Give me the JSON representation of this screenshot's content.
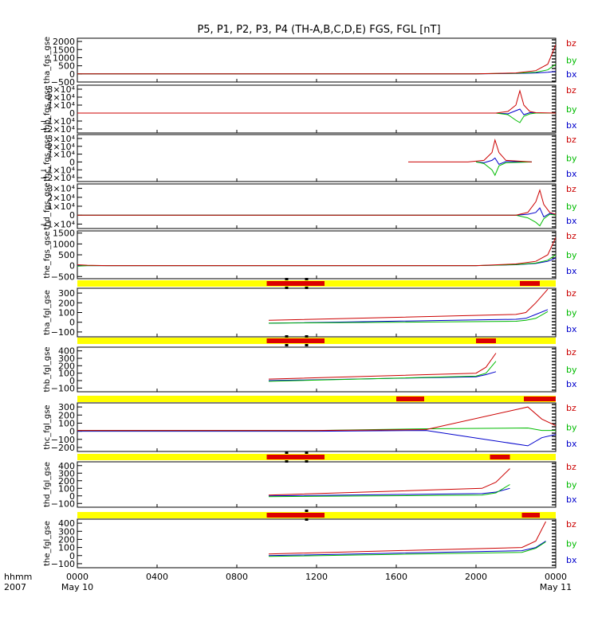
{
  "chart_data": {
    "type": "line",
    "title": "P5, P1, P2, P3, P4 (TH-A,B,C,D,E) FGS, FGL [nT]",
    "x_axis": {
      "label_line1": "hhmm",
      "label_line2": "2007",
      "range_hours": [
        0,
        24
      ],
      "ticks": [
        {
          "hour": 0,
          "label": "0000",
          "sublabel": "May 10"
        },
        {
          "hour": 4,
          "label": "0400",
          "sublabel": ""
        },
        {
          "hour": 8,
          "label": "0800",
          "sublabel": ""
        },
        {
          "hour": 12,
          "label": "1200",
          "sublabel": ""
        },
        {
          "hour": 16,
          "label": "1600",
          "sublabel": ""
        },
        {
          "hour": 20,
          "label": "2000",
          "sublabel": ""
        },
        {
          "hour": 24,
          "label": "0000",
          "sublabel": "May 11"
        }
      ]
    },
    "legend": [
      {
        "name": "bz",
        "color": "#cc0000"
      },
      {
        "name": "by",
        "color": "#00bb00"
      },
      {
        "name": "bx",
        "color": "#0000cc"
      }
    ],
    "status_bar_colors": {
      "normal": "#ffff00",
      "flag": "#dd0000",
      "mark": "#000000"
    },
    "panels": [
      {
        "ylabel": "tha_fgs_gse",
        "ylim": [
          -500,
          2200
        ],
        "ticks": [
          {
            "v": 2000,
            "t": "2000"
          },
          {
            "v": 1500,
            "t": "1500"
          },
          {
            "v": 1000,
            "t": "1000"
          },
          {
            "v": 500,
            "t": "500"
          },
          {
            "v": 0,
            "t": "0"
          },
          {
            "v": -500,
            "t": "−500"
          }
        ],
        "series": [
          {
            "name": "bz",
            "x": [
              0,
              20,
              22,
              23,
              23.6,
              24
            ],
            "y": [
              0,
              0,
              60,
              200,
              600,
              1800
            ]
          },
          {
            "name": "by",
            "x": [
              0,
              20,
              22,
              23,
              23.6,
              24
            ],
            "y": [
              0,
              0,
              40,
              100,
              250,
              600
            ]
          },
          {
            "name": "bx",
            "x": [
              0,
              20,
              22,
              23,
              23.6,
              24
            ],
            "y": [
              0,
              0,
              30,
              60,
              100,
              150
            ]
          }
        ]
      },
      {
        "ylabel": "thb_fgs_gse",
        "ylim": [
          -25000,
          35000
        ],
        "ticks": [
          {
            "v": 30000,
            "t": "3×10⁴"
          },
          {
            "v": 20000,
            "t": "2×10⁴"
          },
          {
            "v": 10000,
            "t": "1×10⁴"
          },
          {
            "v": 0,
            "t": "0"
          },
          {
            "v": -10000,
            "t": "−1×10⁴"
          },
          {
            "v": -20000,
            "t": "−2×10⁴"
          }
        ],
        "series": [
          {
            "name": "bz",
            "x": [
              0,
              21,
              21.6,
              22,
              22.2,
              22.4,
              22.7,
              23,
              24
            ],
            "y": [
              0,
              0,
              2000,
              10000,
              28000,
              10000,
              2000,
              500,
              0
            ]
          },
          {
            "name": "by",
            "x": [
              0,
              21,
              21.6,
              22,
              22.2,
              22.4,
              22.7,
              23,
              24
            ],
            "y": [
              0,
              0,
              -2000,
              -9000,
              -12000,
              -4000,
              -1000,
              0,
              0
            ]
          },
          {
            "name": "bx",
            "x": [
              0,
              21,
              21.6,
              22,
              22.2,
              22.4,
              22.7,
              23,
              24
            ],
            "y": [
              0,
              0,
              -1000,
              3000,
              5000,
              -2000,
              500,
              0,
              0
            ]
          }
        ]
      },
      {
        "ylabel": "thc_fgs_gse",
        "ylim": [
          -25000,
          35000
        ],
        "ticks": [
          {
            "v": 30000,
            "t": "3×10⁴"
          },
          {
            "v": 20000,
            "t": "2×10⁴"
          },
          {
            "v": 10000,
            "t": "1×10⁴"
          },
          {
            "v": 0,
            "t": "0"
          },
          {
            "v": -10000,
            "t": "−1×10⁴"
          },
          {
            "v": -20000,
            "t": "−2×10⁴"
          }
        ],
        "series": [
          {
            "name": "bz",
            "x": [
              16.6,
              19.6,
              20.4,
              20.8,
              20.95,
              21.15,
              21.5,
              22.8
            ],
            "y": [
              0,
              0,
              2000,
              12000,
              28000,
              12000,
              2000,
              0
            ]
          },
          {
            "name": "by",
            "x": [
              20.0,
              20.4,
              20.8,
              20.95,
              21.15,
              21.5,
              22.8
            ],
            "y": [
              0,
              -2000,
              -10000,
              -17000,
              -5000,
              -1000,
              0
            ]
          },
          {
            "name": "bx",
            "x": [
              20.0,
              20.4,
              20.8,
              20.95,
              21.15,
              21.5,
              22.8
            ],
            "y": [
              0,
              -1000,
              2000,
              5000,
              -3000,
              500,
              0
            ]
          }
        ]
      },
      {
        "ylabel": "thd_fgs_gse",
        "ylim": [
          -15000,
          35000
        ],
        "ticks": [
          {
            "v": 30000,
            "t": "3×10⁴"
          },
          {
            "v": 20000,
            "t": "2×10⁴"
          },
          {
            "v": 10000,
            "t": "1×10⁴"
          },
          {
            "v": 0,
            "t": "0"
          },
          {
            "v": -10000,
            "t": "−1×10⁴"
          }
        ],
        "series": [
          {
            "name": "bz",
            "x": [
              0,
              22,
              22.6,
              23,
              23.2,
              23.4,
              23.7,
              24
            ],
            "y": [
              0,
              0,
              3000,
              15000,
              28000,
              12000,
              3000,
              1000
            ]
          },
          {
            "name": "by",
            "x": [
              0,
              22,
              22.6,
              23,
              23.2,
              23.4,
              23.7,
              24
            ],
            "y": [
              0,
              0,
              -3000,
              -8000,
              -12000,
              -4000,
              1000,
              0
            ]
          },
          {
            "name": "bx",
            "x": [
              0,
              22,
              22.6,
              23,
              23.2,
              23.4,
              23.7,
              24
            ],
            "y": [
              0,
              0,
              1000,
              3000,
              8000,
              -2000,
              2000,
              500
            ]
          }
        ]
      },
      {
        "ylabel": "the_fgs_gse",
        "ylim": [
          -600,
          1600
        ],
        "ticks": [
          {
            "v": 1500,
            "t": "1500"
          },
          {
            "v": 1000,
            "t": "1000"
          },
          {
            "v": 500,
            "t": "500"
          },
          {
            "v": 0,
            "t": "0"
          },
          {
            "v": -500,
            "t": "−500"
          }
        ],
        "series": [
          {
            "name": "bz",
            "x": [
              0,
              0.5,
              1.5,
              20,
              22,
              23,
              23.6,
              24
            ],
            "y": [
              40,
              20,
              0,
              0,
              80,
              200,
              500,
              1300
            ]
          },
          {
            "name": "by",
            "x": [
              0,
              0.5,
              1.5,
              20,
              22,
              23,
              23.6,
              24
            ],
            "y": [
              -20,
              0,
              0,
              0,
              50,
              120,
              250,
              500
            ]
          },
          {
            "name": "bx",
            "x": [
              0,
              0.5,
              1.5,
              20,
              22,
              23,
              23.6,
              24
            ],
            "y": [
              0,
              0,
              0,
              0,
              40,
              100,
              200,
              350
            ]
          }
        ]
      },
      {
        "ylabel": "tha_fgl_gse",
        "ylim": [
          -150,
          350
        ],
        "status": {
          "flags": [
            [
              9.5,
              12.4
            ],
            [
              22.2,
              23.2
            ]
          ],
          "marks": [
            10.5,
            11.5
          ]
        },
        "ticks": [
          {
            "v": 300,
            "t": "300"
          },
          {
            "v": 200,
            "t": "200"
          },
          {
            "v": 100,
            "t": "100"
          },
          {
            "v": 0,
            "t": "0"
          },
          {
            "v": -100,
            "t": "−100"
          }
        ],
        "series": [
          {
            "name": "bz",
            "x": [
              9.6,
              22,
              22.5,
              23,
              23.6
            ],
            "y": [
              20,
              80,
              100,
              200,
              340
            ]
          },
          {
            "name": "by",
            "x": [
              9.6,
              22,
              22.5,
              23,
              23.6
            ],
            "y": [
              -10,
              10,
              20,
              40,
              110
            ]
          },
          {
            "name": "bx",
            "x": [
              9.6,
              22,
              22.5,
              23,
              23.6
            ],
            "y": [
              -10,
              30,
              40,
              80,
              130
            ]
          }
        ]
      },
      {
        "ylabel": "thb_fgl_gse",
        "ylim": [
          -150,
          450
        ],
        "status": {
          "flags": [
            [
              9.5,
              12.4
            ],
            [
              20.0,
              21.0
            ]
          ],
          "marks": [
            10.5,
            11.5
          ]
        },
        "ticks": [
          {
            "v": 400,
            "t": "400"
          },
          {
            "v": 300,
            "t": "300"
          },
          {
            "v": 200,
            "t": "200"
          },
          {
            "v": 100,
            "t": "100"
          },
          {
            "v": 0,
            "t": "0"
          },
          {
            "v": -100,
            "t": "−100"
          }
        ],
        "series": [
          {
            "name": "bz",
            "x": [
              9.6,
              20.0,
              20.5,
              21.0
            ],
            "y": [
              20,
              100,
              180,
              370
            ]
          },
          {
            "name": "by",
            "x": [
              9.6,
              20.0,
              20.5,
              21.0
            ],
            "y": [
              -10,
              60,
              100,
              260
            ]
          },
          {
            "name": "bx",
            "x": [
              9.6,
              20.0,
              20.5,
              21.0
            ],
            "y": [
              0,
              50,
              80,
              120
            ]
          }
        ]
      },
      {
        "ylabel": "thc_fgl_gse",
        "ylim": [
          -250,
          350
        ],
        "status": {
          "flags": [
            [
              16.0,
              17.4
            ],
            [
              22.4,
              24.0
            ]
          ],
          "marks": []
        },
        "ticks": [
          {
            "v": 300,
            "t": "300"
          },
          {
            "v": 200,
            "t": "200"
          },
          {
            "v": 100,
            "t": "100"
          },
          {
            "v": 0,
            "t": "0"
          },
          {
            "v": -100,
            "t": "−100"
          },
          {
            "v": -200,
            "t": "−200"
          }
        ],
        "series": [
          {
            "name": "bz",
            "x": [
              0,
              4,
              12,
              17.5,
              22.6,
              23.3,
              24
            ],
            "y": [
              10,
              10,
              10,
              20,
              300,
              150,
              70
            ]
          },
          {
            "name": "by",
            "x": [
              0,
              4,
              12,
              17.5,
              22.6,
              23.3,
              24
            ],
            "y": [
              10,
              10,
              10,
              30,
              40,
              10,
              10
            ]
          },
          {
            "name": "bx",
            "x": [
              0,
              4,
              12,
              17.5,
              22.6,
              23.3,
              24
            ],
            "y": [
              0,
              0,
              0,
              10,
              -180,
              -80,
              -40
            ]
          }
        ]
      },
      {
        "ylabel": "thd_fgl_gse",
        "ylim": [
          -150,
          450
        ],
        "status": {
          "flags": [
            [
              9.5,
              12.4
            ],
            [
              20.7,
              21.7
            ]
          ],
          "marks": [
            10.5,
            11.5
          ]
        },
        "ticks": [
          {
            "v": 400,
            "t": "400"
          },
          {
            "v": 300,
            "t": "300"
          },
          {
            "v": 200,
            "t": "200"
          },
          {
            "v": 100,
            "t": "100"
          },
          {
            "v": 0,
            "t": "0"
          },
          {
            "v": -100,
            "t": "−100"
          }
        ],
        "series": [
          {
            "name": "bz",
            "x": [
              9.6,
              20.3,
              21.0,
              21.7
            ],
            "y": [
              10,
              100,
              180,
              360
            ]
          },
          {
            "name": "by",
            "x": [
              9.6,
              20.3,
              21.0,
              21.7
            ],
            "y": [
              -10,
              10,
              40,
              150
            ]
          },
          {
            "name": "bx",
            "x": [
              9.6,
              20.3,
              21.0,
              21.7
            ],
            "y": [
              0,
              30,
              50,
              100
            ]
          }
        ]
      },
      {
        "ylabel": "the_fgl_gse",
        "ylim": [
          -150,
          450
        ],
        "status": {
          "flags": [
            [
              9.5,
              12.4
            ],
            [
              22.3,
              23.2
            ]
          ],
          "marks": [
            11.5
          ]
        },
        "ticks": [
          {
            "v": 400,
            "t": "400"
          },
          {
            "v": 300,
            "t": "300"
          },
          {
            "v": 200,
            "t": "200"
          },
          {
            "v": 100,
            "t": "100"
          },
          {
            "v": 0,
            "t": "0"
          },
          {
            "v": -100,
            "t": "−100"
          }
        ],
        "series": [
          {
            "name": "bz",
            "x": [
              9.6,
              22.3,
              23,
              23.5
            ],
            "y": [
              20,
              100,
              180,
              420
            ]
          },
          {
            "name": "by",
            "x": [
              9.6,
              22.3,
              23,
              23.5
            ],
            "y": [
              -10,
              40,
              90,
              170
            ]
          },
          {
            "name": "bx",
            "x": [
              9.6,
              22.3,
              23,
              23.5
            ],
            "y": [
              0,
              60,
              100,
              180
            ]
          }
        ]
      }
    ]
  }
}
